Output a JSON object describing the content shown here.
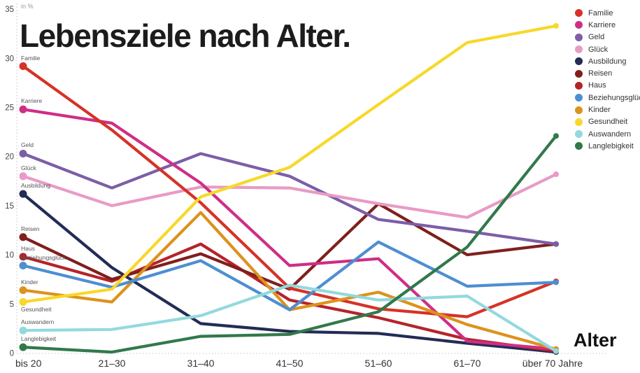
{
  "header": {
    "title": "Lebensziele nach Alter."
  },
  "axis": {
    "unit_label": "in %",
    "x_axis_title": "Alter"
  },
  "chart_data": {
    "type": "line",
    "title": "Lebensziele nach Alter.",
    "ylabel": "in %",
    "xlabel": "Alter",
    "ylim": [
      0,
      35
    ],
    "yticks": [
      0,
      5,
      10,
      15,
      20,
      25,
      30,
      35
    ],
    "grid": "dotted-axis-only",
    "legend_position": "top-right",
    "categories": [
      "bis 20",
      "21–30",
      "31–40",
      "41–50",
      "51–60",
      "61–70",
      "über 70 Jahre"
    ],
    "series": [
      {
        "name": "Familie",
        "color": "#d63227",
        "values": [
          29.2,
          22.7,
          15.3,
          6.6,
          4.5,
          3.7,
          7.3
        ]
      },
      {
        "name": "Karriere",
        "color": "#cf2e86",
        "values": [
          24.8,
          23.4,
          17.3,
          8.9,
          9.6,
          1.2,
          0.4
        ]
      },
      {
        "name": "Geld",
        "color": "#7b5ea7",
        "values": [
          20.3,
          16.8,
          20.3,
          18.0,
          13.6,
          12.4,
          11.1
        ]
      },
      {
        "name": "Glück",
        "color": "#e89bc5",
        "values": [
          18.0,
          15.0,
          16.9,
          16.8,
          15.2,
          13.8,
          18.2
        ]
      },
      {
        "name": "Ausbildung",
        "color": "#232c55",
        "values": [
          16.2,
          8.7,
          3.0,
          2.2,
          2.0,
          1.0,
          0.1
        ]
      },
      {
        "name": "Reisen",
        "color": "#801f1d",
        "values": [
          11.8,
          7.5,
          10.1,
          6.5,
          15.2,
          10.0,
          11.1
        ]
      },
      {
        "name": "Haus",
        "color": "#b5232a",
        "values": [
          9.8,
          7.3,
          11.1,
          5.4,
          3.6,
          1.4,
          0.2
        ]
      },
      {
        "name": "Beziehungsglück",
        "color": "#4e8ed2",
        "values": [
          8.9,
          6.7,
          9.4,
          4.4,
          11.3,
          6.8,
          7.2
        ]
      },
      {
        "name": "Kinder",
        "color": "#dd921c",
        "values": [
          6.4,
          5.2,
          14.3,
          4.4,
          6.2,
          2.9,
          0.4
        ]
      },
      {
        "name": "Gesundheit",
        "color": "#f8d829",
        "values": [
          5.2,
          6.5,
          15.9,
          18.9,
          25.3,
          31.6,
          33.3
        ],
        "label_below": true
      },
      {
        "name": "Auswandern",
        "color": "#93d9de",
        "values": [
          2.3,
          2.4,
          3.8,
          6.9,
          5.4,
          5.8,
          0.2
        ]
      },
      {
        "name": "Langlebigkeit",
        "color": "#31794b",
        "values": [
          0.6,
          0.1,
          1.7,
          1.9,
          4.2,
          10.8,
          22.1
        ]
      }
    ]
  }
}
